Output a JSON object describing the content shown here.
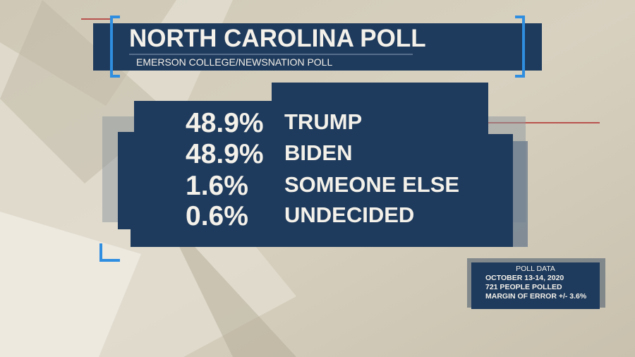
{
  "header": {
    "title": "NORTH CAROLINA POLL",
    "subtitle": "EMERSON COLLEGE/NEWSNATION POLL"
  },
  "results": [
    {
      "percent": "48.9%",
      "name": "TRUMP"
    },
    {
      "percent": "48.9%",
      "name": "BIDEN"
    },
    {
      "percent": "1.6%",
      "name": "SOMEONE ELSE"
    },
    {
      "percent": "0.6%",
      "name": "UNDECIDED"
    }
  ],
  "poll_data": {
    "title": "POLL DATA",
    "lines": [
      "OCTOBER 13-14, 2020",
      "721 PEOPLE POLLED",
      "MARGIN OF ERROR +/- 3.6%"
    ]
  }
}
